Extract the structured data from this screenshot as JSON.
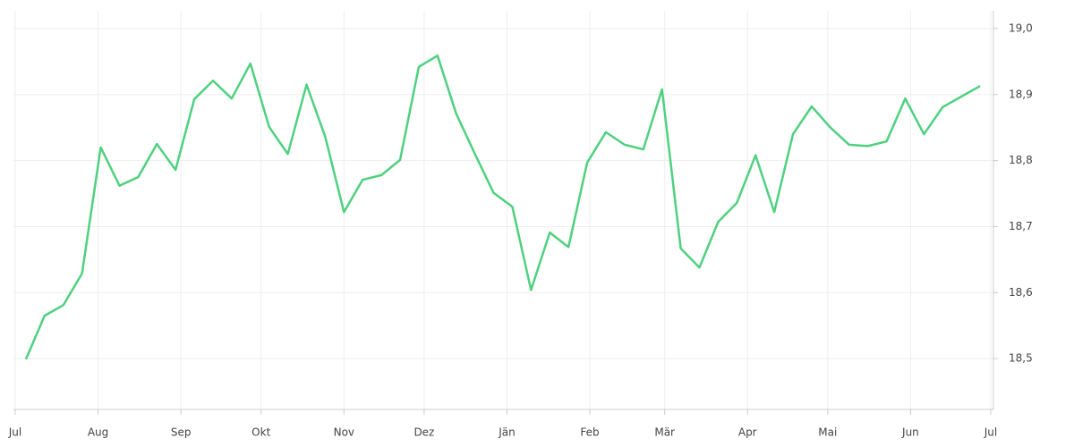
{
  "chart_data": {
    "type": "line",
    "x": [
      4,
      11,
      18,
      25,
      32,
      39,
      46,
      53,
      60,
      67,
      74,
      81,
      88,
      95,
      102,
      109,
      116,
      123,
      130,
      137,
      144,
      151,
      158,
      165,
      172,
      179,
      186,
      193,
      200,
      207,
      214,
      221,
      228,
      235,
      242,
      249,
      256,
      263,
      270,
      277,
      284,
      291,
      298,
      305,
      312,
      319,
      326,
      333,
      340,
      347,
      354,
      361
    ],
    "series": [
      {
        "color": "#4ed17f",
        "values": [
          18.499,
          18.565,
          18.581,
          18.629,
          18.82,
          18.762,
          18.775,
          18.825,
          18.786,
          18.893,
          18.921,
          18.894,
          18.947,
          18.851,
          18.81,
          18.915,
          18.836,
          18.722,
          18.771,
          18.778,
          18.801,
          18.942,
          18.959,
          18.871,
          18.81,
          18.751,
          18.73,
          18.604,
          18.691,
          18.669,
          18.797,
          18.843,
          18.824,
          18.817,
          18.908,
          18.667,
          18.638,
          18.707,
          18.736,
          18.808,
          18.722,
          18.84,
          18.882,
          18.85,
          18.824,
          18.822,
          18.829,
          18.894,
          18.84,
          18.881,
          18.897,
          18.913
        ]
      }
    ],
    "xlim": [
      0,
      365
    ],
    "xticks": [
      {
        "value": 0,
        "label": "Jul"
      },
      {
        "value": 31,
        "label": "Aug"
      },
      {
        "value": 62,
        "label": "Sep"
      },
      {
        "value": 92,
        "label": "Okt"
      },
      {
        "value": 123,
        "label": "Nov"
      },
      {
        "value": 153,
        "label": "Dez"
      },
      {
        "value": 184,
        "label": "Jän"
      },
      {
        "value": 215,
        "label": "Feb"
      },
      {
        "value": 243,
        "label": "Mär"
      },
      {
        "value": 274,
        "label": "Apr"
      },
      {
        "value": 304,
        "label": "Mai"
      },
      {
        "value": 335,
        "label": "Jun"
      },
      {
        "value": 365,
        "label": "Jul"
      }
    ],
    "ylim": [
      18.423,
      19.027
    ],
    "yticks": [
      {
        "value": 18.5,
        "label": "18,5"
      },
      {
        "value": 18.6,
        "label": "18,6"
      },
      {
        "value": 18.7,
        "label": "18,7"
      },
      {
        "value": 18.8,
        "label": "18,8"
      },
      {
        "value": 18.9,
        "label": "18,9"
      },
      {
        "value": 19.0,
        "label": "19,0"
      }
    ],
    "grid": true
  }
}
